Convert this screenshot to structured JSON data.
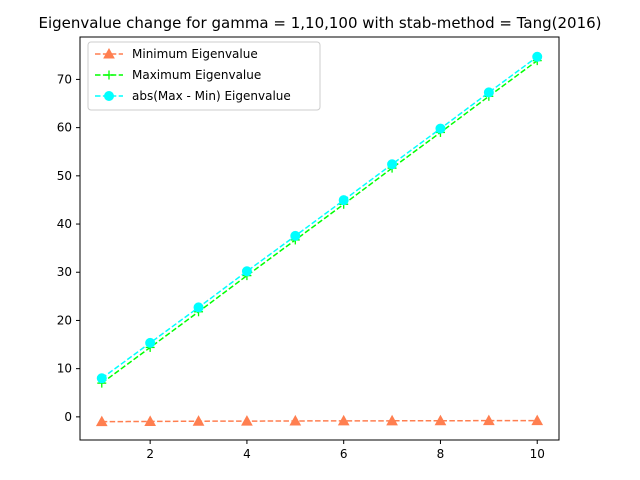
{
  "chart_data": {
    "type": "line",
    "title": "Eigenvalue change for gamma = 1,10,100 with stab-method = Tang(2016)",
    "xlabel": "",
    "ylabel": "",
    "x": [
      1,
      2,
      3,
      4,
      5,
      6,
      7,
      8,
      9,
      10
    ],
    "xlim": [
      0.55,
      10.45
    ],
    "ylim": [
      -4.8,
      78.8
    ],
    "xticks": [
      2,
      4,
      6,
      8,
      10
    ],
    "yticks": [
      0,
      10,
      20,
      30,
      40,
      50,
      60,
      70
    ],
    "grid": false,
    "legend_position": "upper-left",
    "series": [
      {
        "name": "Minimum Eigenvalue",
        "color": "#ff7f50",
        "marker": "triangle",
        "line_style": "dashed",
        "values": [
          -1.0,
          -0.95,
          -0.9,
          -0.88,
          -0.85,
          -0.83,
          -0.82,
          -0.8,
          -0.79,
          -0.78
        ]
      },
      {
        "name": "Maximum Eigenvalue",
        "color": "#00ff00",
        "marker": "plus",
        "line_style": "dashed",
        "values": [
          7.0,
          14.4,
          21.8,
          29.3,
          36.7,
          44.1,
          51.6,
          59.0,
          66.5,
          73.9
        ]
      },
      {
        "name": "abs(Max - Min) Eigenvalue",
        "color": "#00ffff",
        "marker": "circle",
        "line_style": "dashed",
        "values": [
          8.0,
          15.35,
          22.7,
          30.2,
          37.55,
          44.95,
          52.4,
          59.8,
          67.3,
          74.7
        ]
      }
    ]
  }
}
